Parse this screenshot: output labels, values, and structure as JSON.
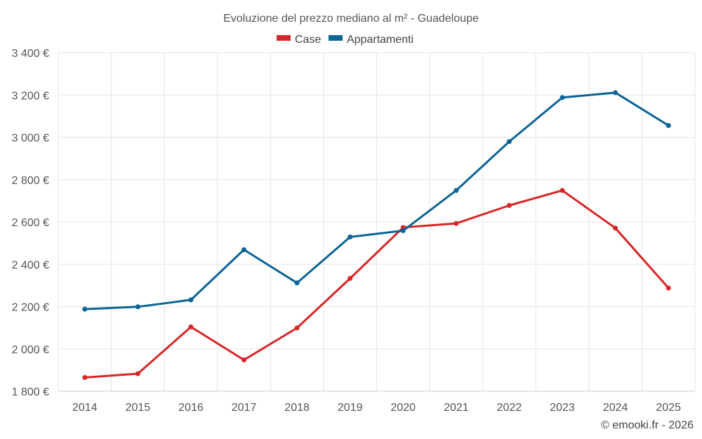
{
  "chart_data": {
    "type": "line",
    "title": "Evoluzione del prezzo mediano al m² - Guadeloupe",
    "categories": [
      "2014",
      "2015",
      "2016",
      "2017",
      "2018",
      "2019",
      "2020",
      "2021",
      "2022",
      "2023",
      "2024",
      "2025"
    ],
    "series": [
      {
        "name": "Case",
        "color": "#d62728",
        "values": [
          1865,
          1883,
          2104,
          1948,
          2099,
          2333,
          2574,
          2593,
          2678,
          2749,
          2571,
          2288
        ]
      },
      {
        "name": "Appartamenti",
        "color": "#0b6496",
        "values": [
          2188,
          2199,
          2232,
          2469,
          2312,
          2529,
          2559,
          2749,
          2980,
          3188,
          3211,
          3056
        ]
      }
    ],
    "yticks": [
      "1 800 €",
      "2 000 €",
      "2 200 €",
      "2 400 €",
      "2 600 €",
      "2 800 €",
      "3 000 €",
      "3 200 €",
      "3 400 €"
    ],
    "ytick_values": [
      1800,
      2000,
      2200,
      2400,
      2600,
      2800,
      3000,
      3200,
      3400
    ],
    "ylim": [
      1800,
      3400
    ],
    "grid": true,
    "legend": "top-center",
    "credit": "© emooki.fr - 2026"
  }
}
